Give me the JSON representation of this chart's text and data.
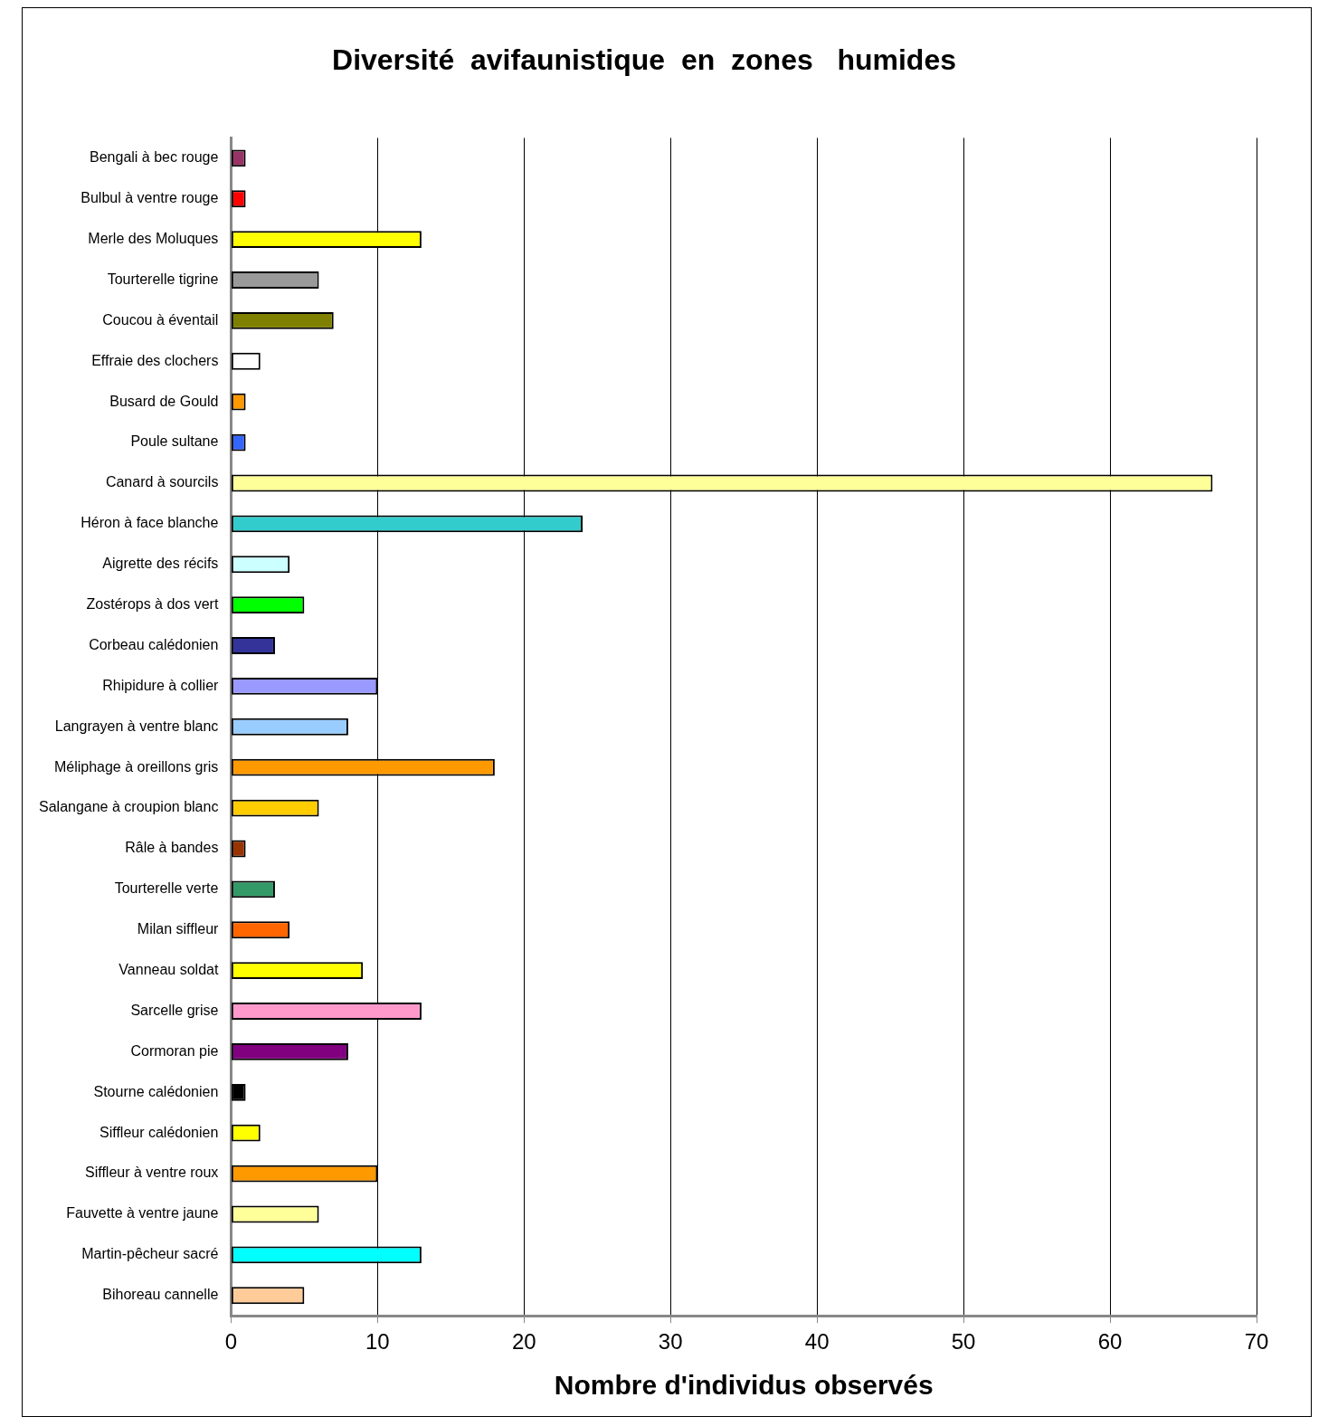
{
  "chart_data": {
    "type": "bar",
    "orientation": "horizontal",
    "title": "Diversité  avifaunistique  en  zones   humides",
    "xlabel": "Nombre d'individus observés",
    "categories": [
      "Bengali à bec rouge",
      "Bulbul à ventre rouge",
      "Merle des Moluques",
      "Tourterelle tigrine",
      "Coucou à éventail",
      "Effraie des clochers",
      "Busard de Gould",
      "Poule sultane",
      "Canard à sourcils",
      "Héron à face blanche",
      "Aigrette des récifs",
      "Zostérops à dos vert",
      "Corbeau calédonien",
      "Rhipidure à collier",
      "Langrayen à ventre blanc",
      "Méliphage à oreillons gris",
      "Salangane à croupion blanc",
      "Râle à bandes",
      "Tourterelle verte",
      "Milan siffleur",
      "Vanneau soldat",
      "Sarcelle grise",
      "Cormoran pie",
      "Stourne calédonien",
      "Siffleur calédonien",
      "Siffleur à ventre roux",
      "Fauvette à ventre jaune",
      "Martin-pêcheur sacré",
      "Bihoreau cannelle"
    ],
    "values": [
      1,
      1,
      13,
      6,
      7,
      2,
      1,
      1,
      67,
      24,
      4,
      5,
      3,
      10,
      8,
      18,
      6,
      1,
      3,
      4,
      9,
      13,
      8,
      1,
      2,
      10,
      6,
      13,
      5
    ],
    "colors": [
      "#993366",
      "#ff0000",
      "#ffff00",
      "#999999",
      "#808000",
      "#ffffff",
      "#ff9900",
      "#3366ff",
      "#ffff99",
      "#33cccc",
      "#ccffff",
      "#00ff00",
      "#333399",
      "#9999ff",
      "#99ccff",
      "#ff9900",
      "#ffcc00",
      "#993300",
      "#339966",
      "#ff6600",
      "#ffff00",
      "#ff99cc",
      "#800080",
      "#000000",
      "#ffff00",
      "#ff9900",
      "#ffff99",
      "#00ffff",
      "#ffcc99"
    ],
    "xlim": [
      0,
      70
    ],
    "xticks": [
      0,
      10,
      20,
      30,
      40,
      50,
      60,
      70
    ],
    "grid": "x",
    "legend": false
  }
}
